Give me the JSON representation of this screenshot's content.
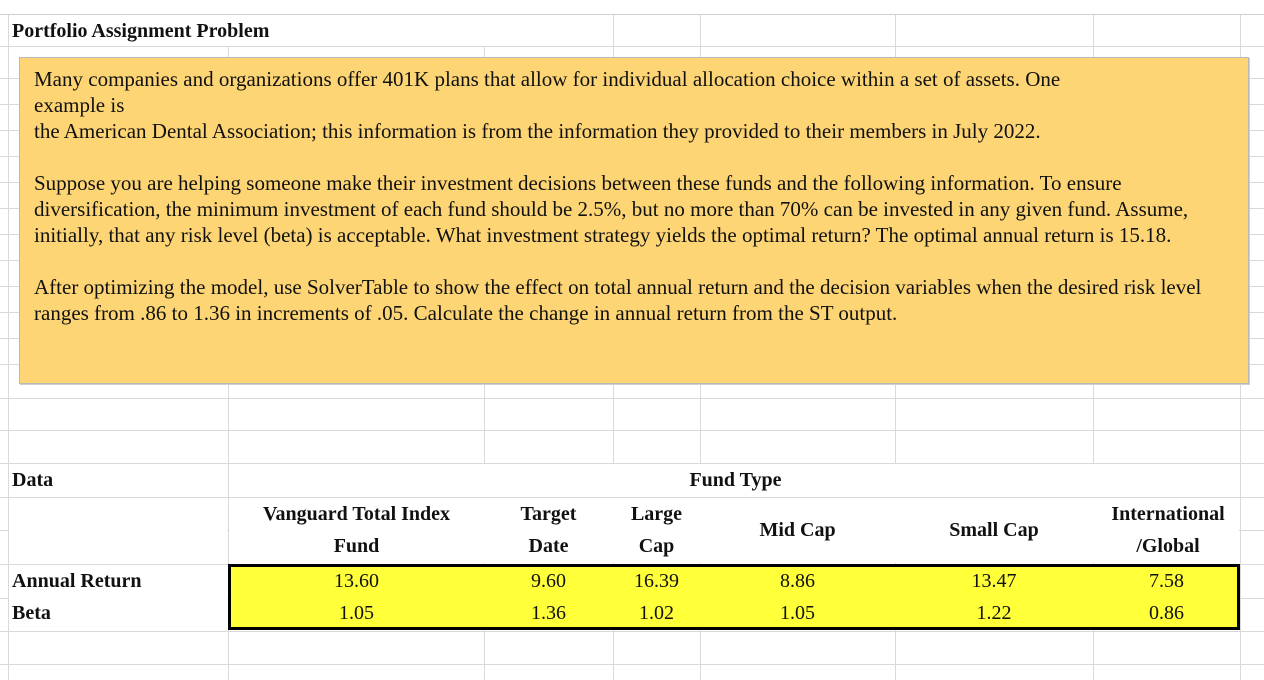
{
  "sheet": {
    "title": "Portfolio Assignment Problem",
    "note": {
      "paragraph1_line1": "Many companies and organizations offer 401K plans that allow for individual allocation choice within a set of assets.  One",
      "paragraph1_line2": "example is",
      "paragraph1_line3": "the American Dental Association; this information is from the information they provided to their members in July 2022.",
      "paragraph2": "Suppose you are helping someone make their investment decisions between these funds and the following information.  To ensure diversification, the minimum investment of each fund should be 2.5%, but no more than 70% can be invested in any given fund.  Assume, initially, that any risk level (beta) is acceptable.  What investment strategy yields the optimal return?  The optimal annual return is 15.18.",
      "paragraph3": "After optimizing the model, use SolverTable to show the effect on total annual return and the decision variables when the desired risk level ranges from .86 to 1.36 in increments of .05.  Calculate the change in annual return from the ST output."
    },
    "data_label": "Data",
    "fund_type_label": "Fund Type",
    "funds": [
      {
        "line1": "Vanguard Total Index",
        "line2": "Fund",
        "annual_return": "13.60",
        "beta": "1.05"
      },
      {
        "line1": "Target",
        "line2": "Date",
        "annual_return": "9.60",
        "beta": "1.36"
      },
      {
        "line1": "Large",
        "line2": "Cap",
        "annual_return": "16.39",
        "beta": "1.02"
      },
      {
        "line1": "Mid Cap",
        "line2": "",
        "annual_return": "8.86",
        "beta": "1.05"
      },
      {
        "line1": "Small Cap",
        "line2": "",
        "annual_return": "13.47",
        "beta": "1.22"
      },
      {
        "line1": "International",
        "line2": "/Global",
        "annual_return": "7.58",
        "beta": "0.86"
      }
    ],
    "row_labels": {
      "annual_return": "Annual Return",
      "beta": "Beta"
    },
    "colors": {
      "note_fill": "#fdd574",
      "highlight_fill": "#ffff3a"
    }
  }
}
